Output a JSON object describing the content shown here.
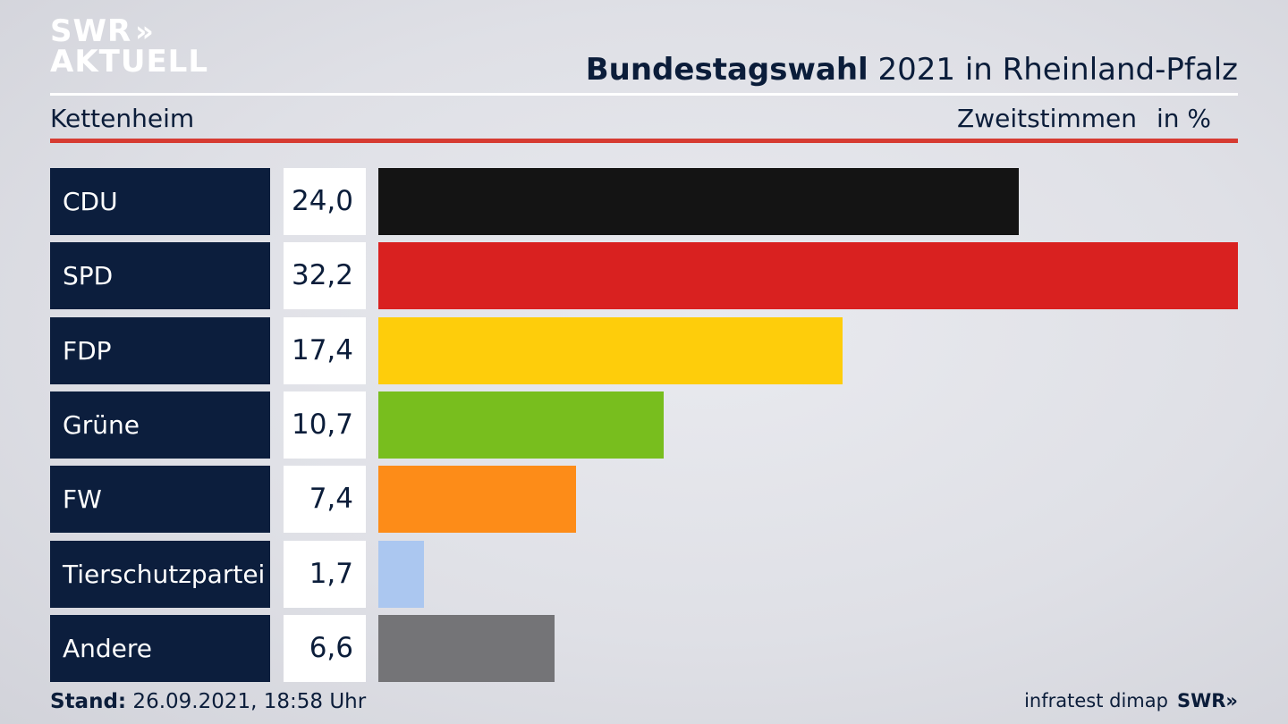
{
  "logo": {
    "line1": "SWR",
    "chevrons": "»",
    "line2": "AKTUELL"
  },
  "header": {
    "title_bold": "Bundestagswahl",
    "title_rest": " 2021 in Rheinland-Pfalz",
    "location": "Kettenheim",
    "measure": "Zweitstimmen",
    "unit": "in %"
  },
  "chart_data": {
    "type": "bar",
    "orientation": "horizontal",
    "categories": [
      "CDU",
      "SPD",
      "FDP",
      "Grüne",
      "FW",
      "Tierschutzpartei",
      "Andere"
    ],
    "values": [
      24.0,
      32.2,
      17.4,
      10.7,
      7.4,
      1.7,
      6.6
    ],
    "value_labels": [
      "24,0",
      "32,2",
      "17,4",
      "10,7",
      "7,4",
      "1,7",
      "6,6"
    ],
    "colors": [
      "#141414",
      "#d92120",
      "#fecd0b",
      "#78be1e",
      "#fd8c18",
      "#abc7f0",
      "#747477"
    ],
    "xlim": [
      0,
      32.2
    ]
  },
  "footer": {
    "stand_label": "Stand:",
    "stand_value": " 26.09.2021, 18:58 Uhr",
    "source": "infratest dimap",
    "brand": "SWR»"
  }
}
